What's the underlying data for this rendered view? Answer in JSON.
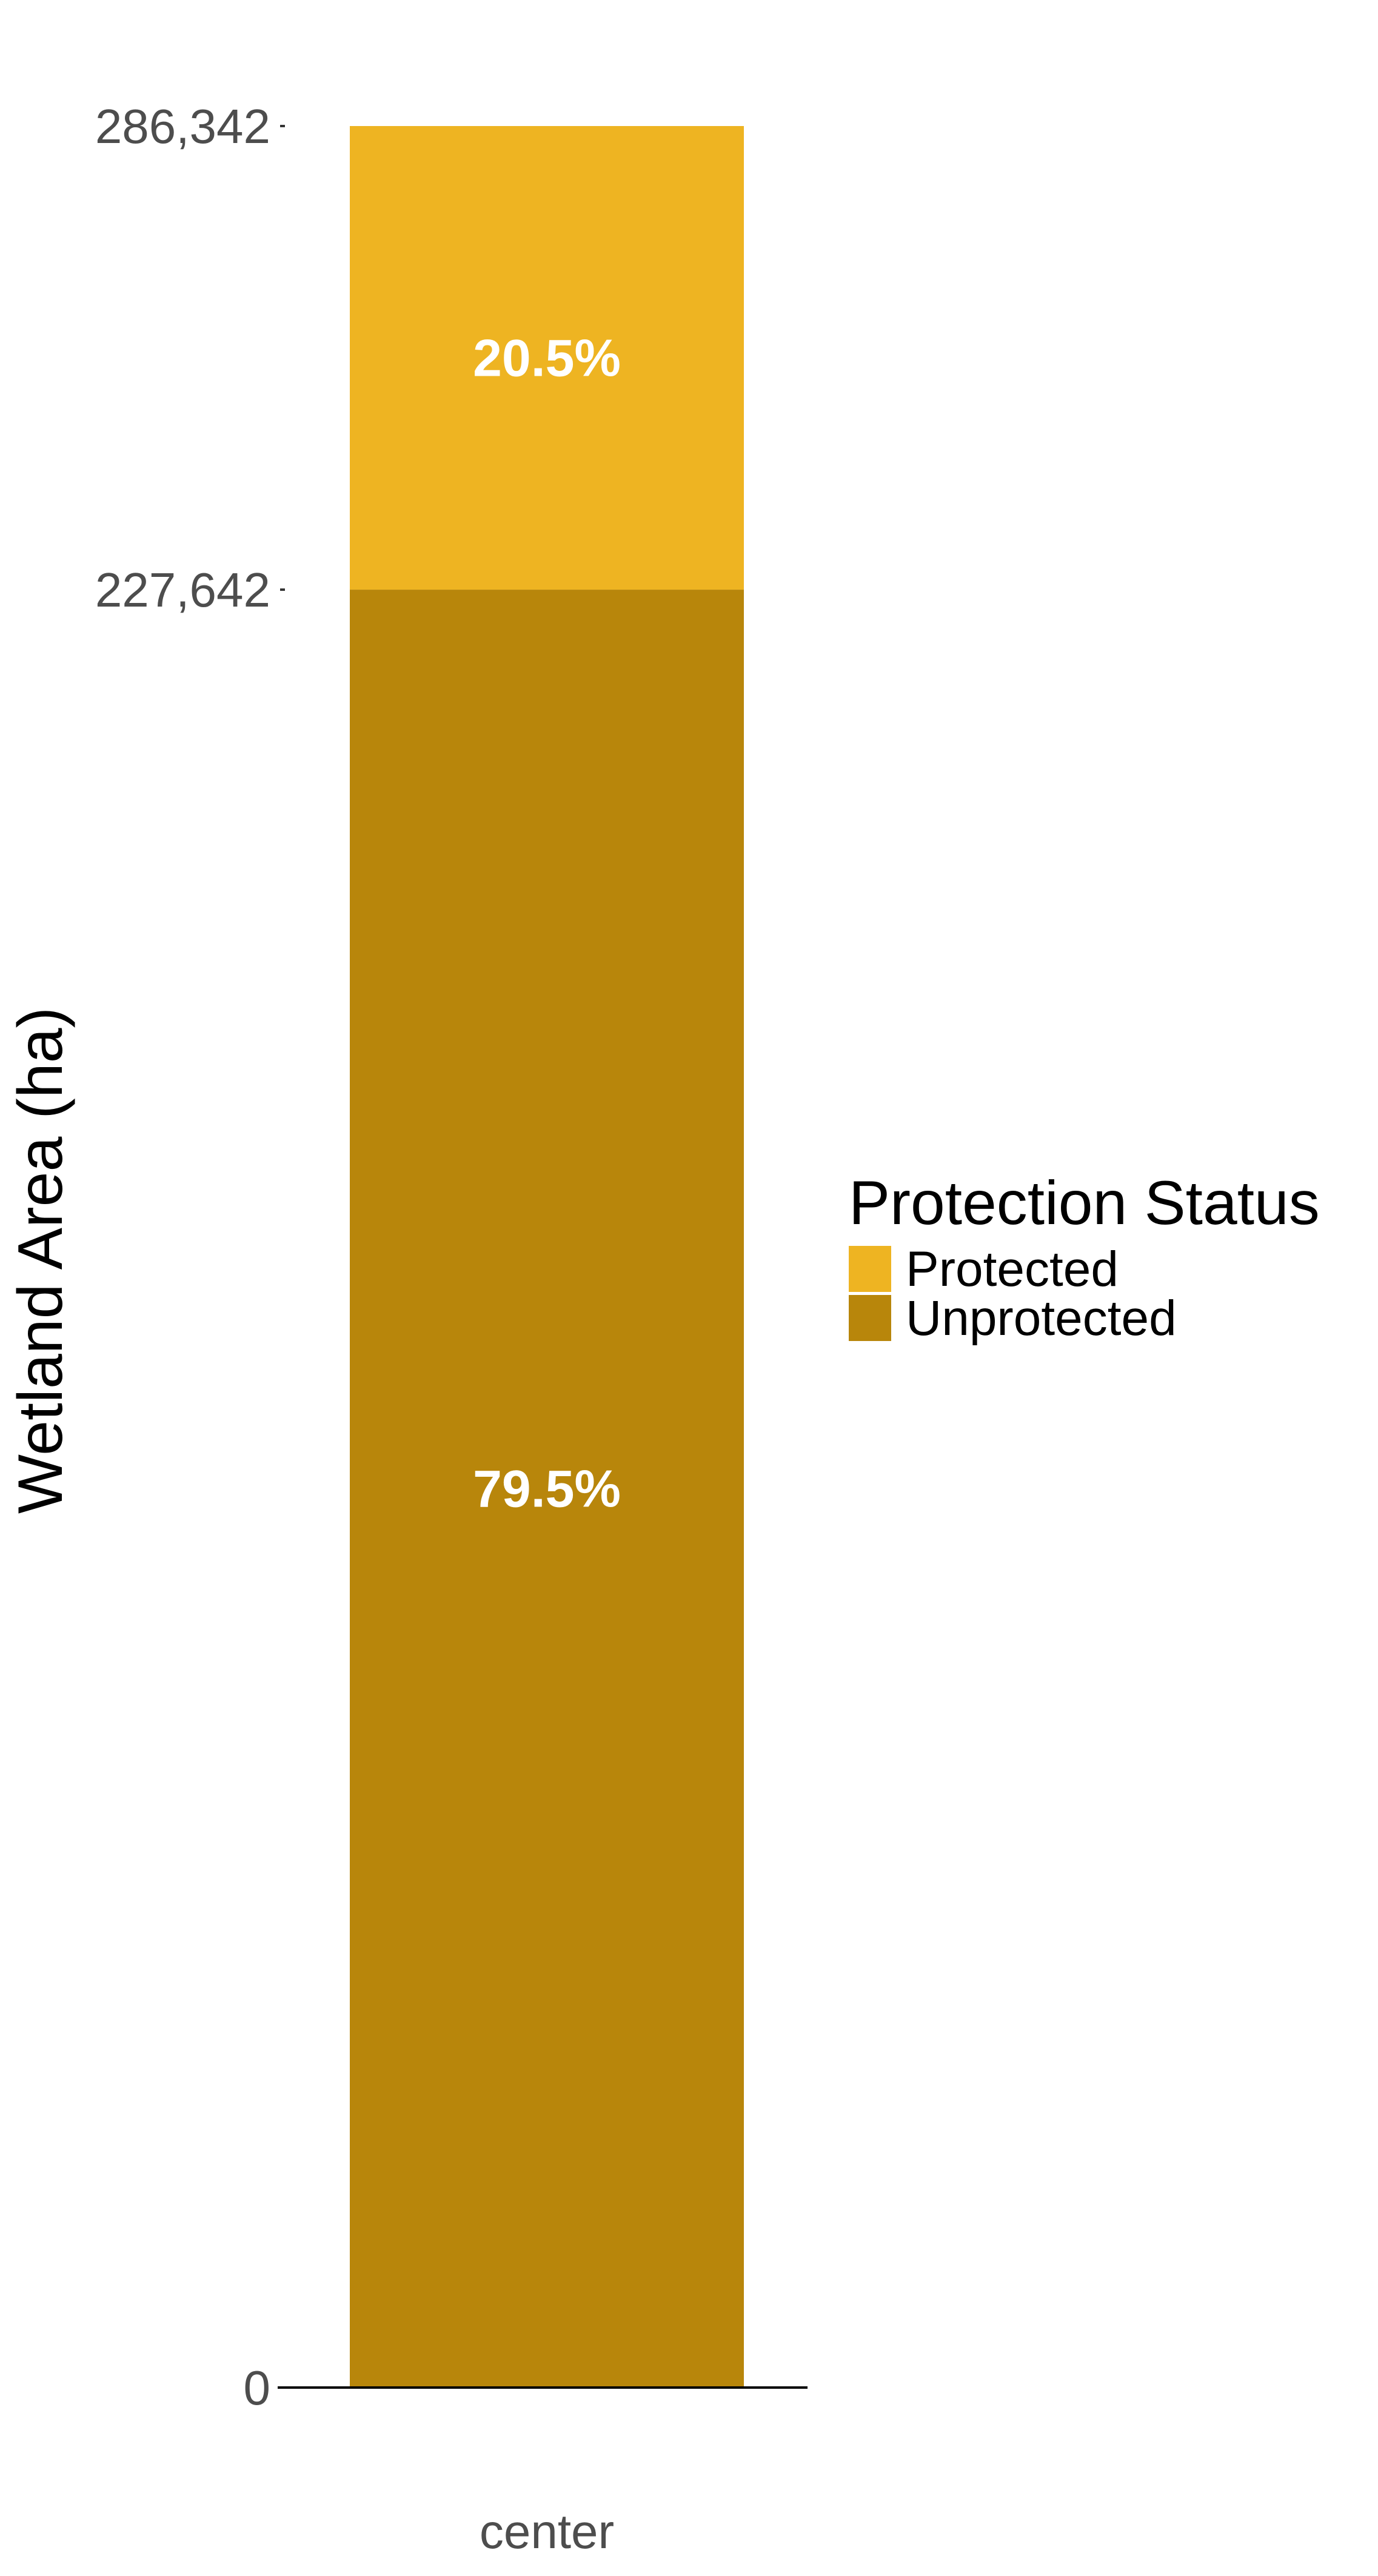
{
  "chart_data": {
    "type": "bar",
    "stacked": true,
    "categories": [
      "center"
    ],
    "ylabel": "Wetland Area (ha)",
    "xlabel": "",
    "ylim": [
      0,
      286342
    ],
    "y_ticks": [
      0,
      227642,
      286342
    ],
    "y_tick_labels": [
      "0",
      "227,642",
      "286,342"
    ],
    "series": [
      {
        "name": "Unprotected",
        "values": [
          227642
        ],
        "label": "79.5%",
        "color": "#B8860B"
      },
      {
        "name": "Protected",
        "values": [
          58700
        ],
        "label": "20.5%",
        "color": "#EEB422"
      }
    ],
    "legend": {
      "title": "Protection Status",
      "position": "right",
      "entries": [
        {
          "label": "Protected",
          "color": "#EEB422"
        },
        {
          "label": "Unprotected",
          "color": "#B8860B"
        }
      ]
    },
    "grid": false
  }
}
